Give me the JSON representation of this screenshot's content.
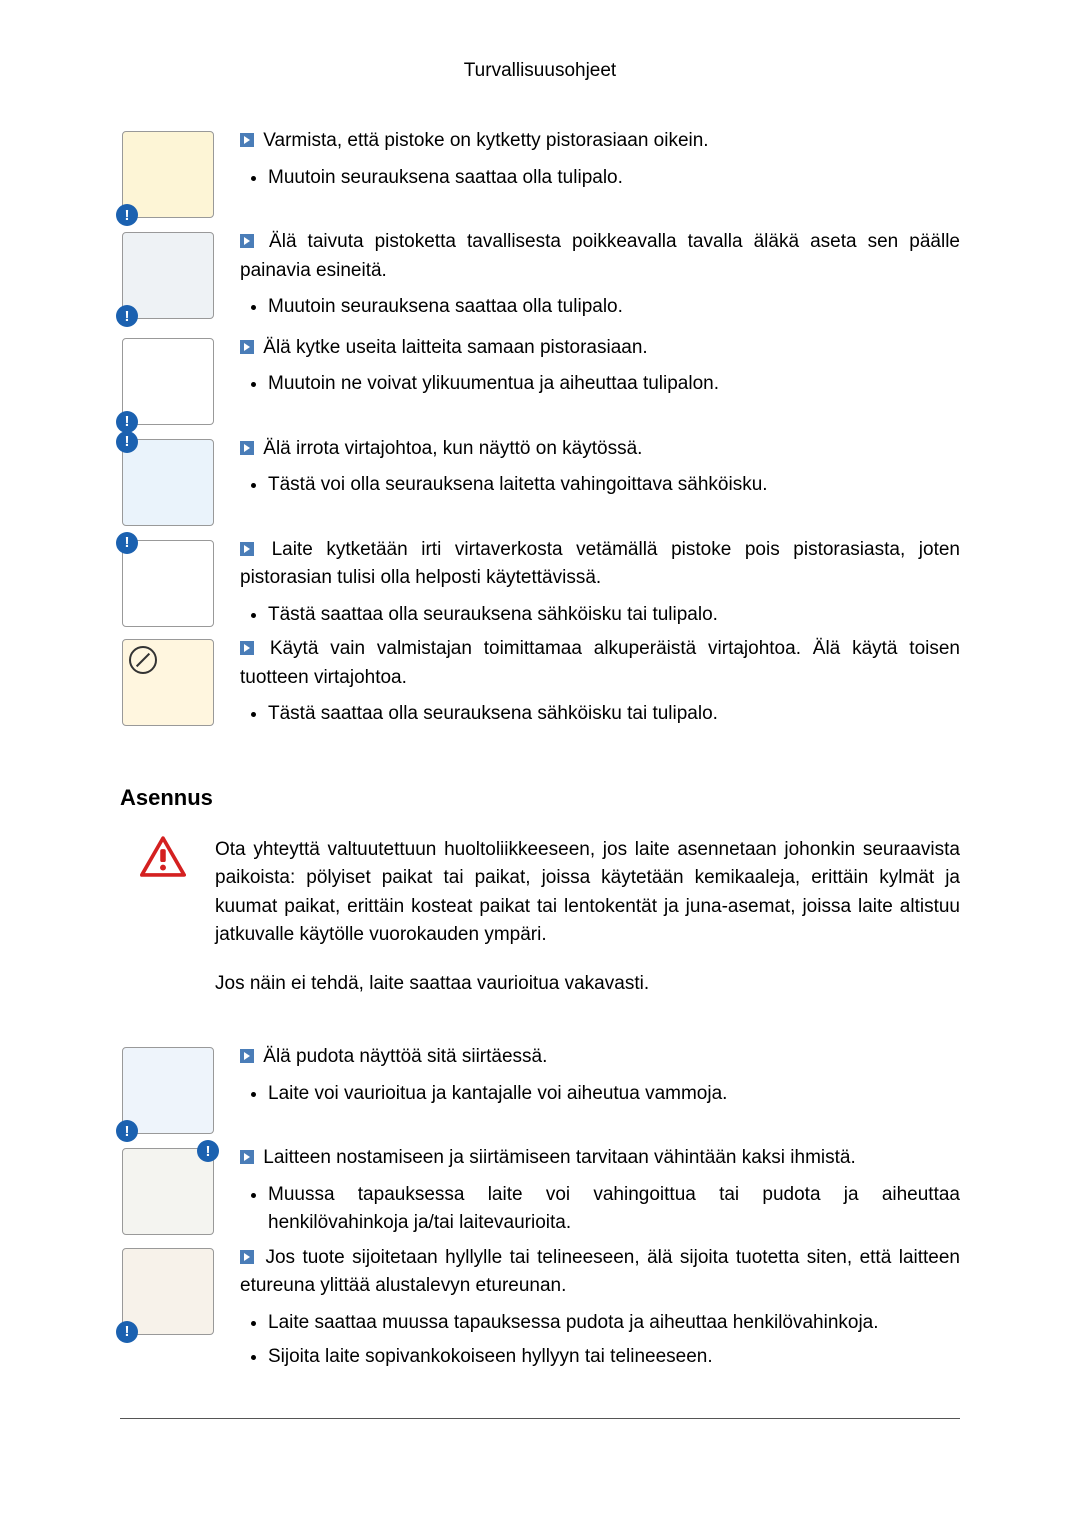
{
  "header": {
    "title": "Turvallisuusohjeet"
  },
  "badge_colors": {
    "warning": "#1b61b0",
    "info": "#1b61b0"
  },
  "section1": {
    "items": [
      {
        "main": "Varmista, että pistoke on kytketty pistorasiaan oikein.",
        "bullets": [
          "Muutoin seurauksena saattaa olla tulipalo."
        ],
        "illus_bg": "#fdf5d6",
        "badge": {
          "pos": "bl",
          "color": "#1b61b0",
          "glyph": "!"
        }
      },
      {
        "main": "Älä taivuta pistoketta tavallisesta poikkeavalla tavalla äläkä aseta sen päälle painavia esineitä.",
        "bullets": [
          "Muutoin seurauksena saattaa olla tulipalo."
        ],
        "illus_bg": "#eef2f5",
        "badge": {
          "pos": "bl",
          "color": "#1b61b0",
          "glyph": "!"
        }
      },
      {
        "main": "Älä kytke useita laitteita samaan pistorasiaan.",
        "bullets": [
          "Muutoin ne voivat ylikuumentua ja aiheuttaa tulipalon."
        ],
        "illus_bg": "#ffffff",
        "badge": {
          "pos": "bl",
          "color": "#1b61b0",
          "glyph": "!"
        }
      },
      {
        "main": "Älä irrota virtajohtoa, kun näyttö on käytössä.",
        "bullets": [
          "Tästä voi olla seurauksena laitetta vahingoittava sähköisku."
        ],
        "illus_bg": "#eaf3fb",
        "badge": {
          "pos": "tl",
          "color": "#1b61b0",
          "glyph": "!"
        }
      },
      {
        "main": "Laite kytketään irti virtaverkosta vetämällä pistoke pois pistorasiasta, joten pistorasian tulisi olla helposti käytettävissä.",
        "bullets": [
          "Tästä saattaa olla seurauksena sähköisku tai tulipalo."
        ],
        "illus_bg": "#ffffff",
        "badge": {
          "pos": "tl",
          "color": "#1b61b0",
          "glyph": "!"
        }
      },
      {
        "main": "Käytä vain valmistajan toimittamaa alkuperäistä virtajohtoa. Älä käytä toisen tuotteen virtajohtoa.",
        "bullets": [
          "Tästä saattaa olla seurauksena sähköisku tai tulipalo."
        ],
        "illus_bg": "#fff6df",
        "prohibit": true
      }
    ]
  },
  "section2": {
    "heading": "Asennus",
    "warning": {
      "p1": "Ota yhteyttä valtuutettuun huoltoliikkeeseen, jos laite asennetaan johonkin seuraavista paikoista: pölyiset paikat tai paikat, joissa käytetään kemikaaleja, erittäin kylmät ja kuumat paikat, erittäin kosteat paikat tai lentokentät ja juna-asemat, joissa laite altistuu jatkuvalle käytölle vuorokauden ympäri.",
      "p2": "Jos näin ei tehdä, laite saattaa vaurioitua vakavasti."
    },
    "items": [
      {
        "main": "Älä pudota näyttöä sitä siirtäessä.",
        "bullets": [
          "Laite voi vaurioitua ja kantajalle voi aiheutua vammoja."
        ],
        "illus_bg": "#eef4fb",
        "badge": {
          "pos": "bl",
          "color": "#1b61b0",
          "glyph": "!"
        }
      },
      {
        "main": "Laitteen nostamiseen ja siirtämiseen tarvitaan vähintään kaksi ihmistä.",
        "bullets": [
          "Muussa tapauksessa laite voi vahingoittua tai pudota ja aiheuttaa henkilövahinkoja ja/tai laitevaurioita."
        ],
        "illus_bg": "#f4f4f0",
        "badge": {
          "pos": "tr",
          "color": "#1b61b0",
          "glyph": "!"
        }
      },
      {
        "main": "Jos tuote sijoitetaan hyllylle tai telineeseen, älä sijoita tuotetta siten, että laitteen etureuna ylittää alustalevyn etureunan.",
        "bullets": [
          "Laite saattaa muussa tapauksessa pudota ja aiheuttaa henkilövahinkoja.",
          "Sijoita laite sopivankokoiseen hyllyyn tai telineeseen."
        ],
        "illus_bg": "#f7f2ea",
        "badge": {
          "pos": "bl",
          "color": "#1b61b0",
          "glyph": "!"
        }
      }
    ]
  }
}
